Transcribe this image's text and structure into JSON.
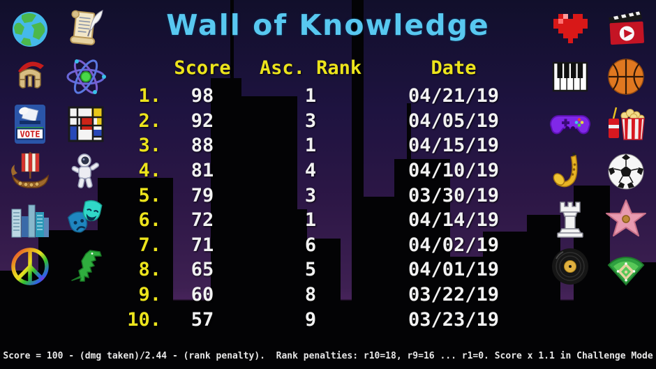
{
  "title": "Wall of Knowledge",
  "colors": {
    "title_cyan": "#58c8f0",
    "header_yellow": "#ece41c",
    "body_white": "#f2f2f2",
    "sky_top": "#110f2b",
    "sky_bottom": "#46235a",
    "silhouette_black": "#000000"
  },
  "table": {
    "headers": {
      "score": "Score",
      "asc_rank": "Asc. Rank",
      "date": "Date"
    },
    "rows": [
      {
        "rank": "1.",
        "score": "98",
        "asc_rank": "1",
        "date": "04/21/19"
      },
      {
        "rank": "2.",
        "score": "92",
        "asc_rank": "3",
        "date": "04/05/19"
      },
      {
        "rank": "3.",
        "score": "88",
        "asc_rank": "1",
        "date": "04/15/19"
      },
      {
        "rank": "4.",
        "score": "81",
        "asc_rank": "4",
        "date": "04/10/19"
      },
      {
        "rank": "5.",
        "score": "79",
        "asc_rank": "3",
        "date": "03/30/19"
      },
      {
        "rank": "6.",
        "score": "72",
        "asc_rank": "1",
        "date": "04/14/19"
      },
      {
        "rank": "7.",
        "score": "71",
        "asc_rank": "6",
        "date": "04/02/19"
      },
      {
        "rank": "8.",
        "score": "65",
        "asc_rank": "5",
        "date": "04/01/19"
      },
      {
        "rank": "9.",
        "score": "60",
        "asc_rank": "8",
        "date": "03/22/19"
      },
      {
        "rank": "10.",
        "score": "57",
        "asc_rank": "9",
        "date": "03/23/19"
      }
    ]
  },
  "footer": {
    "formula": "Score = 100 - (dmg taken)/2.44 - (rank penalty).  Rank penalties: r10=18, r9=16 ... r1=0. Score x 1.1 in Challenge Mode"
  },
  "icons": {
    "left": [
      "earth-globe",
      "scroll-quill",
      "spartan-helmet",
      "atom",
      "vote-ballot",
      "mondrian-painting",
      "viking-ship",
      "astronaut",
      "city-buildings",
      "theater-masks",
      "peace-sign",
      "t-rex"
    ],
    "right": [
      "pixel-heart",
      "movie-clapperboard",
      "piano-keys",
      "basketball",
      "game-controller",
      "popcorn-soda",
      "saxophone",
      "soccer-ball",
      "chess-rook",
      "walk-of-fame-star",
      "vinyl-record",
      "baseball-field"
    ]
  }
}
